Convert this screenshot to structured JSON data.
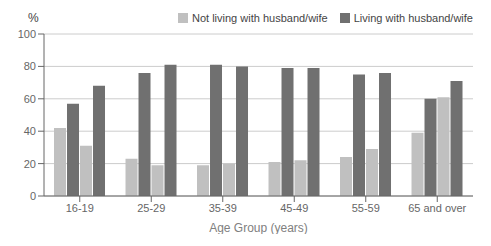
{
  "chart_data": {
    "type": "bar",
    "categories": [
      "16-19",
      "25-29",
      "35-39",
      "45-49",
      "55-59",
      "65 and over"
    ],
    "series": [
      {
        "name": "Not living with husband/wife",
        "color": "#c0c0c0",
        "values": [
          42,
          23,
          19,
          21,
          24,
          39
        ]
      },
      {
        "name": "Living with husband/wife",
        "color": "#707070",
        "values": [
          57,
          76,
          81,
          79,
          75,
          60
        ]
      },
      {
        "name": "Not living with husband/wife",
        "color": "#c0c0c0",
        "values": [
          31,
          19,
          20,
          22,
          29,
          61
        ]
      },
      {
        "name": "Living with husband/wife",
        "color": "#707070",
        "values": [
          68,
          81,
          80,
          79,
          76,
          71
        ]
      }
    ],
    "xlabel": "Age Group (years)",
    "ylabel": "%",
    "ylim": [
      0,
      100
    ],
    "yticks": [
      0,
      20,
      40,
      60,
      80,
      100
    ],
    "grid": true,
    "legend": "upper right"
  }
}
